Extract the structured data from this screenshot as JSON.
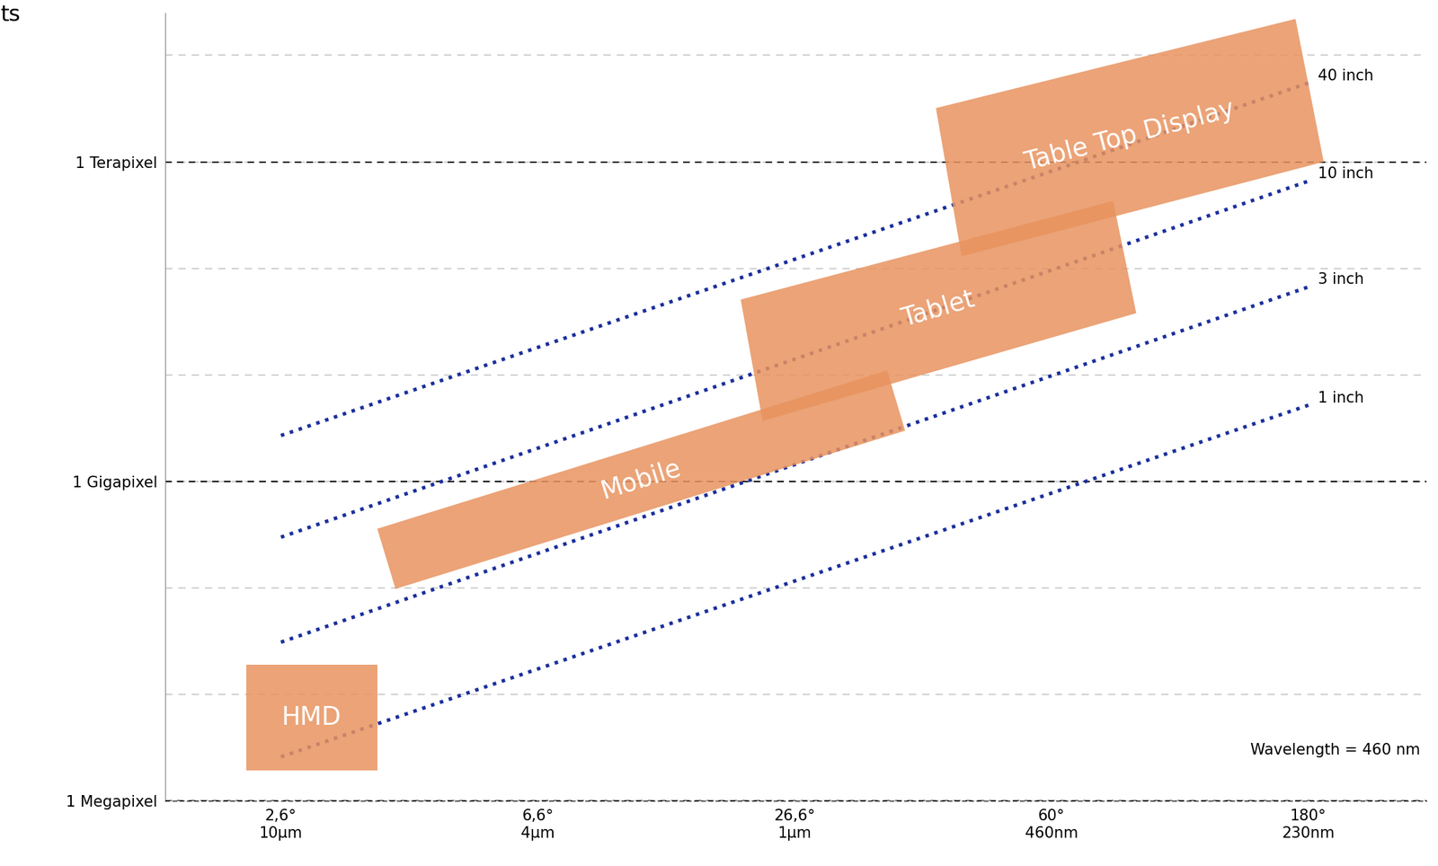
{
  "chart_data": {
    "type": "line",
    "title": "ts",
    "log": "y",
    "grid": true,
    "xlim": [
      -0.45,
      4.46
    ],
    "xticks": [
      {
        "value": 0,
        "label": "2,6°\n10µm"
      },
      {
        "value": 1,
        "label": "6,6°\n4µm"
      },
      {
        "value": 2,
        "label": "26,6°\n1µm"
      },
      {
        "value": 3,
        "label": "60°\n460nm"
      },
      {
        "value": 4,
        "label": "180°\n230nm"
      }
    ],
    "ylim": [
      1000000,
      25000000000000
    ],
    "yticks": [
      {
        "value": 1000000,
        "label": "1 Megapixel"
      },
      {
        "value": 1000000000,
        "label": "1 Gigapixel"
      },
      {
        "value": 1000000000000,
        "label": "1 Terapixel"
      }
    ],
    "series": [
      {
        "name": "1 inch",
        "color": "#1a2f9c",
        "line_style": "dotted",
        "x": [
          0,
          4
        ],
        "values": [
          2600000,
          5200000000
        ]
      },
      {
        "name": "3 inch",
        "color": "#1a2f9c",
        "line_style": "dotted",
        "x": [
          0,
          4
        ],
        "values": [
          31000000,
          67000000000
        ]
      },
      {
        "name": "10 inch",
        "color": "#1a2f9c",
        "line_style": "dotted",
        "x": [
          0,
          4
        ],
        "values": [
          300000000,
          660000000000
        ]
      },
      {
        "name": "40 inch",
        "color": "#1a2f9c",
        "line_style": "dotted",
        "x": [
          0,
          4
        ],
        "values": [
          2700000000,
          5500000000000
        ]
      }
    ],
    "regions": [
      {
        "name": "HMD",
        "color": "#e8935f",
        "x": [
          -0.136,
          -0.136,
          0.375,
          0.375
        ],
        "y": [
          19000000,
          1950000,
          1950000,
          19000000
        ]
      },
      {
        "name": "Mobile",
        "color": "#e8935f",
        "x": [
          0.375,
          0.446,
          2.43,
          2.36
        ],
        "y": [
          360000000,
          98000000,
          3000000000,
          11000000000
        ]
      },
      {
        "name": "Tablet",
        "color": "#e8935f",
        "x": [
          1.79,
          1.875,
          3.33,
          3.24
        ],
        "y": [
          51000000000,
          3700000000,
          38000000000,
          430000000000
        ]
      },
      {
        "name": "Table Top Display",
        "color": "#e8935f",
        "x": [
          2.55,
          2.65,
          4.06,
          3.95
        ],
        "y": [
          3200000000000,
          130000000000,
          1000000000000,
          22000000000000
        ]
      }
    ],
    "annotations": [
      "Wavelength = 460 nm"
    ]
  }
}
